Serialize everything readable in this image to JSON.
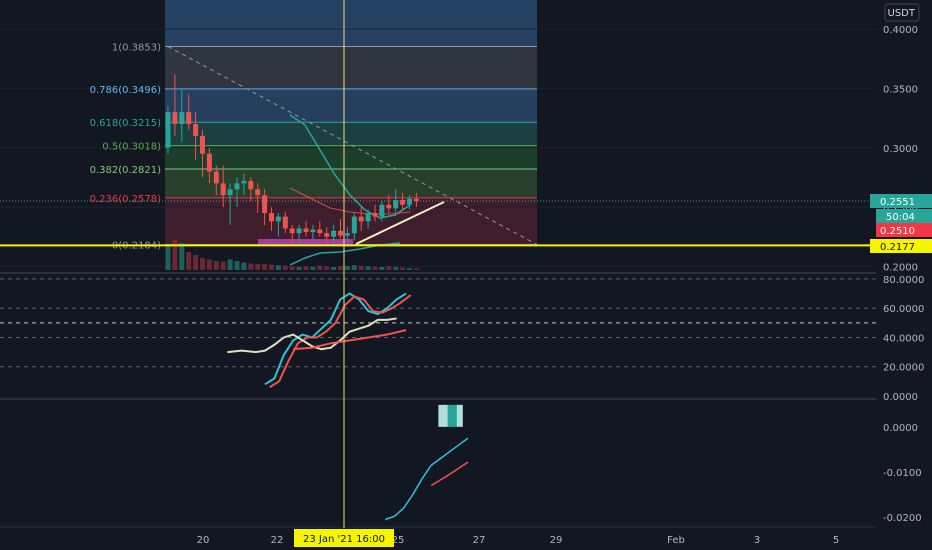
{
  "currency": "USDT",
  "chart_data": {
    "type": "candlestick",
    "title": "",
    "price_axis": {
      "unit": "USDT",
      "ticks": [
        "0.4000",
        "0.3500",
        "0.3000",
        "0.2500",
        "0.2000"
      ],
      "ylim": [
        0.197,
        0.4245
      ]
    },
    "time_axis": {
      "ticks": [
        "20",
        "22",
        "25",
        "27",
        "29",
        "Feb",
        "3",
        "5"
      ],
      "crosshair_label": "23 Jan '21   16:00"
    },
    "fibonacci": [
      {
        "label": "1(0.3853)",
        "level": 0.3853,
        "color": "#9598a1"
      },
      {
        "label": "0.786(0.3496)",
        "level": 0.3496,
        "color": "#64b5f6"
      },
      {
        "label": "0.618(0.3215)",
        "level": 0.3215,
        "color": "#26a69a"
      },
      {
        "label": "0.5(0.3018)",
        "level": 0.3018,
        "color": "#4caf50"
      },
      {
        "label": "0.382(0.2821)",
        "level": 0.2821,
        "color": "#81c784"
      },
      {
        "label": "0.236(0.2578)",
        "level": 0.2578,
        "color": "#f23645"
      },
      {
        "label": "0(0.2184)",
        "level": 0.2184,
        "color": "#9598a1"
      }
    ],
    "price_labels": [
      {
        "text": "0.2551",
        "value": 0.2551,
        "color": "#26a69a"
      },
      {
        "text": "50:04",
        "value": 0.2528,
        "color": "#26a69a"
      },
      {
        "text": "0.2510",
        "value": 0.251,
        "color": "#f23645"
      },
      {
        "text": "0.2177",
        "value": 0.2177,
        "color": "#f5f500"
      }
    ],
    "horizontal_line": 0.2177,
    "candles": [
      [
        0.3,
        0.335,
        0.295,
        0.33
      ],
      [
        0.33,
        0.362,
        0.31,
        0.32
      ],
      [
        0.32,
        0.35,
        0.305,
        0.33
      ],
      [
        0.33,
        0.345,
        0.315,
        0.32
      ],
      [
        0.32,
        0.33,
        0.29,
        0.31
      ],
      [
        0.31,
        0.315,
        0.275,
        0.295
      ],
      [
        0.295,
        0.3,
        0.27,
        0.28
      ],
      [
        0.28,
        0.285,
        0.26,
        0.27
      ],
      [
        0.27,
        0.285,
        0.25,
        0.26
      ],
      [
        0.26,
        0.27,
        0.235,
        0.265
      ],
      [
        0.265,
        0.275,
        0.25,
        0.27
      ],
      [
        0.27,
        0.278,
        0.26,
        0.272
      ],
      [
        0.272,
        0.275,
        0.255,
        0.265
      ],
      [
        0.265,
        0.27,
        0.245,
        0.26
      ],
      [
        0.26,
        0.265,
        0.235,
        0.245
      ],
      [
        0.245,
        0.25,
        0.23,
        0.238
      ],
      [
        0.238,
        0.245,
        0.225,
        0.242
      ],
      [
        0.242,
        0.246,
        0.228,
        0.232
      ],
      [
        0.232,
        0.235,
        0.22,
        0.228
      ],
      [
        0.228,
        0.235,
        0.22,
        0.232
      ],
      [
        0.232,
        0.238,
        0.225,
        0.229
      ],
      [
        0.229,
        0.235,
        0.223,
        0.231
      ],
      [
        0.231,
        0.238,
        0.225,
        0.228
      ],
      [
        0.228,
        0.233,
        0.22,
        0.225
      ],
      [
        0.225,
        0.235,
        0.22,
        0.23
      ],
      [
        0.23,
        0.24,
        0.224,
        0.226
      ],
      [
        0.226,
        0.233,
        0.22,
        0.228
      ],
      [
        0.228,
        0.245,
        0.222,
        0.242
      ],
      [
        0.242,
        0.25,
        0.23,
        0.238
      ],
      [
        0.238,
        0.248,
        0.232,
        0.245
      ],
      [
        0.245,
        0.252,
        0.238,
        0.242
      ],
      [
        0.242,
        0.255,
        0.238,
        0.252
      ],
      [
        0.252,
        0.26,
        0.245,
        0.249
      ],
      [
        0.249,
        0.265,
        0.245,
        0.256
      ],
      [
        0.256,
        0.262,
        0.248,
        0.252
      ],
      [
        0.252,
        0.26,
        0.248,
        0.257
      ],
      [
        0.257,
        0.262,
        0.25,
        0.2551
      ]
    ],
    "volume": [
      0.8,
      1.0,
      0.9,
      0.6,
      0.5,
      0.4,
      0.35,
      0.3,
      0.28,
      0.35,
      0.3,
      0.25,
      0.22,
      0.2,
      0.2,
      0.18,
      0.16,
      0.15,
      0.12,
      0.1,
      0.12,
      0.1,
      0.15,
      0.12,
      0.1,
      0.12,
      0.13,
      0.16,
      0.14,
      0.12,
      0.1,
      0.1,
      0.12,
      0.1,
      0.08,
      0.06,
      0.05
    ],
    "oscillator": {
      "ticks": [
        "80.0000",
        "60.0000",
        "40.0000",
        "20.0000",
        "0.0000"
      ],
      "ylim": [
        0,
        82
      ],
      "levels": [
        80,
        60,
        50,
        40,
        20
      ],
      "series": [
        {
          "color": "#26c6da",
          "values": [
            [
              0,
              8
            ],
            [
              2,
              12
            ],
            [
              4,
              28
            ],
            [
              6,
              38
            ],
            [
              8,
              42
            ],
            [
              10,
              40
            ],
            [
              12,
              46
            ],
            [
              14,
              52
            ],
            [
              16,
              66
            ],
            [
              18,
              70
            ],
            [
              20,
              66
            ],
            [
              22,
              58
            ],
            [
              24,
              56
            ],
            [
              26,
              60
            ],
            [
              28,
              66
            ],
            [
              30,
              70
            ]
          ]
        },
        {
          "color": "#ef5350",
          "values": [
            [
              1,
              6
            ],
            [
              3,
              10
            ],
            [
              5,
              24
            ],
            [
              7,
              36
            ],
            [
              9,
              40
            ],
            [
              11,
              40
            ],
            [
              13,
              44
            ],
            [
              15,
              50
            ],
            [
              17,
              62
            ],
            [
              19,
              68
            ],
            [
              21,
              66
            ],
            [
              23,
              58
            ],
            [
              25,
              57
            ],
            [
              27,
              60
            ],
            [
              29,
              64
            ],
            [
              31,
              69
            ]
          ]
        },
        {
          "color": "#e0e0c0",
          "values": [
            [
              -8,
              30
            ],
            [
              -5,
              31
            ],
            [
              -2,
              30
            ],
            [
              0,
              31
            ],
            [
              2,
              35
            ],
            [
              4,
              40
            ],
            [
              6,
              42
            ],
            [
              8,
              38
            ],
            [
              10,
              34
            ],
            [
              12,
              32
            ],
            [
              14,
              33
            ],
            [
              16,
              38
            ],
            [
              18,
              44
            ],
            [
              20,
              46
            ],
            [
              22,
              48
            ],
            [
              24,
              52
            ],
            [
              26,
              52
            ],
            [
              28,
              53
            ]
          ]
        },
        {
          "color": "#ef5350",
          "values": [
            [
              6,
              32
            ],
            [
              10,
              33
            ],
            [
              14,
              36
            ],
            [
              18,
              38
            ],
            [
              22,
              40
            ],
            [
              26,
              42
            ],
            [
              30,
              45
            ]
          ]
        }
      ]
    },
    "macd": {
      "ticks": [
        "0.0000",
        "-0.0100",
        "-0.0200"
      ],
      "ylim": [
        -0.0215,
        0.0055
      ],
      "histogram": [
        {
          "x": 24,
          "value": 0.0018,
          "color": "#b2dfdb"
        },
        {
          "x": 25,
          "value": 0.0019,
          "color": "#b2dfdb"
        },
        {
          "x": 26,
          "value": 0.0019,
          "color": "#26a69a"
        },
        {
          "x": 27,
          "value": 0.0019,
          "color": "#26a69a"
        },
        {
          "x": 28,
          "value": 0.0018,
          "color": "#b2dfdb"
        }
      ],
      "series": [
        {
          "color": "#26c6da",
          "values": [
            [
              12,
              -0.0205
            ],
            [
              14,
              -0.0198
            ],
            [
              16,
              -0.018
            ],
            [
              18,
              -0.015
            ],
            [
              20,
              -0.0115
            ],
            [
              22,
              -0.0085
            ],
            [
              24,
              -0.007
            ],
            [
              26,
              -0.0055
            ],
            [
              28,
              -0.004
            ],
            [
              30,
              -0.0025
            ]
          ]
        },
        {
          "color": "#ef5350",
          "values": [
            [
              22,
              -0.013
            ],
            [
              26,
              -0.0105
            ],
            [
              30,
              -0.0078
            ]
          ]
        }
      ]
    }
  }
}
